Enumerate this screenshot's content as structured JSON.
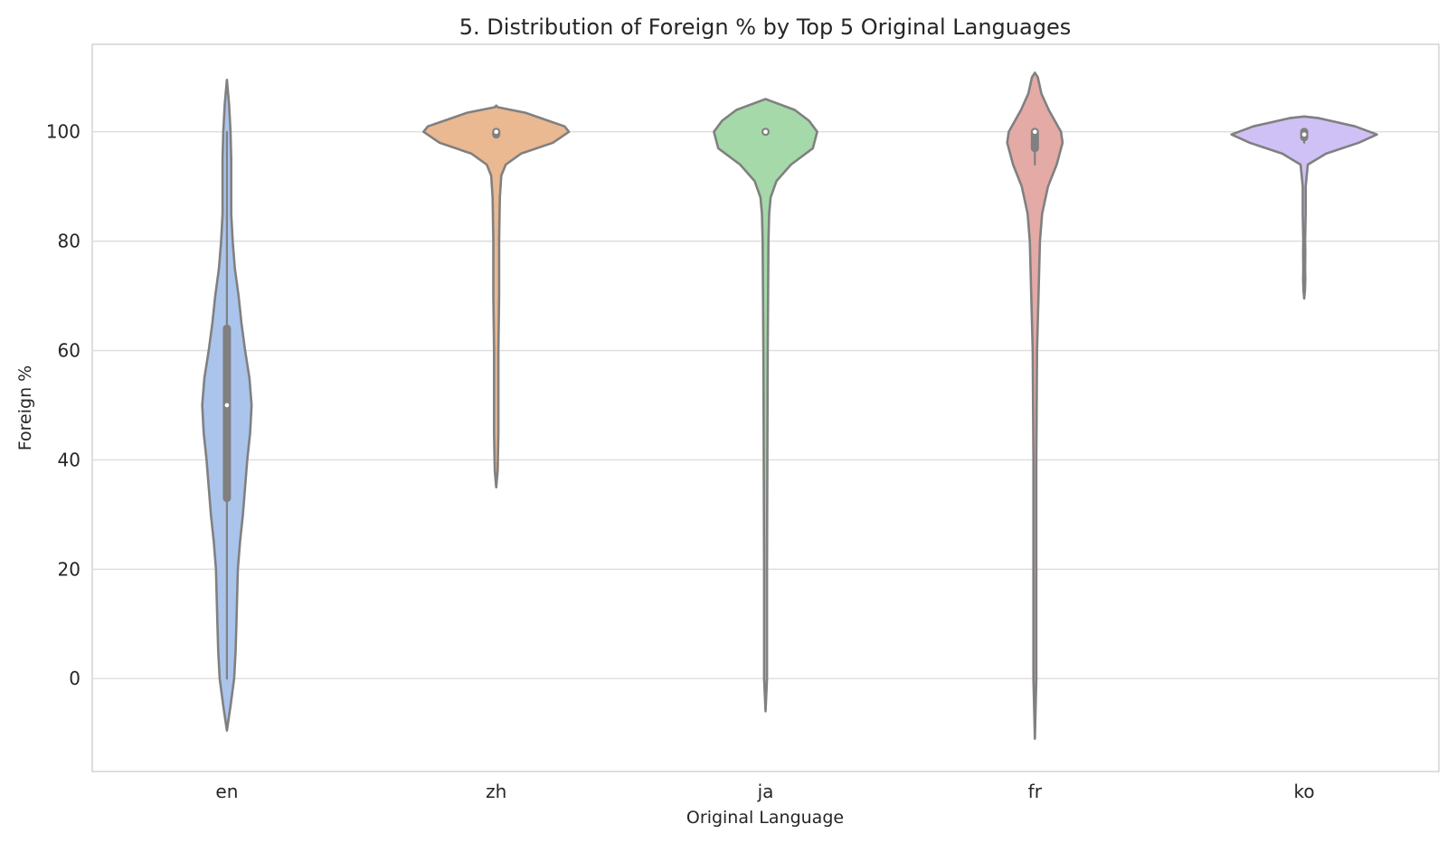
{
  "chart_data": {
    "type": "violin",
    "title": "5. Distribution of Foreign % by Top 5 Original Languages",
    "xlabel": "Original Language",
    "ylabel": "Foreign %",
    "ylim": [
      -17,
      116
    ],
    "yticks": [
      0,
      20,
      40,
      60,
      80,
      100
    ],
    "grid": "horizontal",
    "categories": [
      "en",
      "zh",
      "ja",
      "fr",
      "ko"
    ],
    "colors": [
      "#abc4eb",
      "#eab891",
      "#a5d9a9",
      "#e4aaa6",
      "#cfc1f5"
    ],
    "series": [
      {
        "category": "en",
        "median": 50,
        "q1": 33,
        "q3": 64,
        "whisker_low": 0,
        "whisker_high": 100,
        "density": [
          [
            -9.5,
            0.0
          ],
          [
            -5,
            0.05
          ],
          [
            0,
            0.1
          ],
          [
            5,
            0.12
          ],
          [
            10,
            0.13
          ],
          [
            15,
            0.14
          ],
          [
            20,
            0.15
          ],
          [
            25,
            0.18
          ],
          [
            30,
            0.22
          ],
          [
            35,
            0.25
          ],
          [
            40,
            0.28
          ],
          [
            45,
            0.32
          ],
          [
            50,
            0.34
          ],
          [
            55,
            0.31
          ],
          [
            60,
            0.25
          ],
          [
            65,
            0.2
          ],
          [
            70,
            0.16
          ],
          [
            75,
            0.11
          ],
          [
            80,
            0.08
          ],
          [
            85,
            0.06
          ],
          [
            90,
            0.06
          ],
          [
            95,
            0.06
          ],
          [
            100,
            0.05
          ],
          [
            105,
            0.03
          ],
          [
            109.5,
            0.0
          ]
        ]
      },
      {
        "category": "zh",
        "median": 100,
        "q1": 99.5,
        "q3": 100,
        "whisker_low": 99,
        "whisker_high": 100,
        "density": [
          [
            35,
            0.0
          ],
          [
            38,
            0.02
          ],
          [
            45,
            0.03
          ],
          [
            60,
            0.03
          ],
          [
            70,
            0.04
          ],
          [
            80,
            0.04
          ],
          [
            88,
            0.05
          ],
          [
            92,
            0.07
          ],
          [
            94,
            0.13
          ],
          [
            96,
            0.34
          ],
          [
            98,
            0.78
          ],
          [
            100,
            1.0
          ],
          [
            101,
            0.94
          ],
          [
            102,
            0.72
          ],
          [
            103.5,
            0.4
          ],
          [
            104.5,
            0.02
          ],
          [
            104.8,
            0.0
          ]
        ]
      },
      {
        "category": "ja",
        "median": 100,
        "q1": 100,
        "q3": 100,
        "whisker_low": 100,
        "whisker_high": 100,
        "density": [
          [
            -6,
            0.0
          ],
          [
            0,
            0.02
          ],
          [
            20,
            0.02
          ],
          [
            40,
            0.025
          ],
          [
            60,
            0.03
          ],
          [
            80,
            0.04
          ],
          [
            85,
            0.05
          ],
          [
            88,
            0.07
          ],
          [
            91,
            0.15
          ],
          [
            94,
            0.35
          ],
          [
            97,
            0.65
          ],
          [
            100,
            0.71
          ],
          [
            102,
            0.6
          ],
          [
            104,
            0.4
          ],
          [
            105.8,
            0.04
          ],
          [
            106,
            0.0
          ]
        ]
      },
      {
        "category": "fr",
        "median": 100,
        "q1": 97,
        "q3": 100,
        "whisker_low": 94,
        "whisker_high": 100,
        "density": [
          [
            -11,
            0.0
          ],
          [
            0,
            0.02
          ],
          [
            20,
            0.02
          ],
          [
            40,
            0.02
          ],
          [
            60,
            0.03
          ],
          [
            70,
            0.05
          ],
          [
            80,
            0.07
          ],
          [
            85,
            0.1
          ],
          [
            90,
            0.18
          ],
          [
            94,
            0.3
          ],
          [
            98,
            0.38
          ],
          [
            100,
            0.36
          ],
          [
            104,
            0.19
          ],
          [
            107,
            0.09
          ],
          [
            110,
            0.04
          ],
          [
            110.8,
            0.0
          ]
        ]
      },
      {
        "category": "ko",
        "median": 99.5,
        "q1": 99,
        "q3": 100,
        "whisker_low": 98,
        "whisker_high": 100,
        "density": [
          [
            69.5,
            0.0
          ],
          [
            71,
            0.01
          ],
          [
            73,
            0.015
          ],
          [
            75,
            0.012
          ],
          [
            78,
            0.015
          ],
          [
            80,
            0.013
          ],
          [
            85,
            0.02
          ],
          [
            90,
            0.02
          ],
          [
            94,
            0.05
          ],
          [
            96,
            0.3
          ],
          [
            98,
            0.75
          ],
          [
            99.5,
            1.0
          ],
          [
            101,
            0.7
          ],
          [
            102.5,
            0.2
          ],
          [
            102.8,
            0.0
          ]
        ]
      }
    ]
  }
}
